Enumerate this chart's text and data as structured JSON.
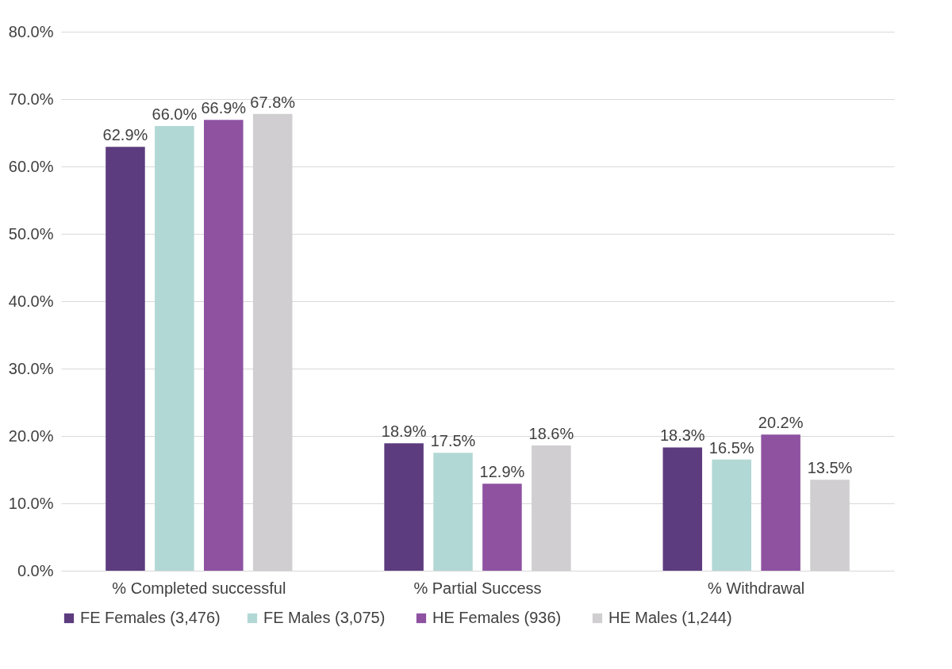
{
  "chart_data": {
    "type": "bar",
    "categories": [
      "% Completed successful",
      "% Partial Success",
      "% Withdrawal"
    ],
    "series": [
      {
        "name": "FE Females (3,476)",
        "color": "#5c3c7e",
        "values": [
          62.9,
          18.9,
          18.3
        ],
        "value_labels": [
          "62.9%",
          "18.9%",
          "18.3%"
        ]
      },
      {
        "name": "FE Males  (3,075)",
        "color": "#b2d8d5",
        "values": [
          66.0,
          17.5,
          16.5
        ],
        "value_labels": [
          "66.0%",
          "17.5%",
          "16.5%"
        ]
      },
      {
        "name": "HE Females  (936)",
        "color": "#8e52a1",
        "values": [
          66.9,
          12.9,
          20.2
        ],
        "value_labels": [
          "66.9%",
          "12.9%",
          "20.2%"
        ]
      },
      {
        "name": "HE Males  (1,244)",
        "color": "#d0ced0",
        "values": [
          67.8,
          18.6,
          13.5
        ],
        "value_labels": [
          "67.8%",
          "18.6%",
          "13.5%"
        ]
      }
    ],
    "ylim": [
      0,
      80
    ],
    "yticks": [
      {
        "value": 0,
        "label": "0.0%"
      },
      {
        "value": 10,
        "label": "10.0%"
      },
      {
        "value": 20,
        "label": "20.0%"
      },
      {
        "value": 30,
        "label": "30.0%"
      },
      {
        "value": 40,
        "label": "40.0%"
      },
      {
        "value": 50,
        "label": "50.0%"
      },
      {
        "value": 60,
        "label": "60.0%"
      },
      {
        "value": 70,
        "label": "70.0%"
      },
      {
        "value": 80,
        "label": "80.0%"
      }
    ],
    "grid": "y",
    "legend": "bottom"
  }
}
